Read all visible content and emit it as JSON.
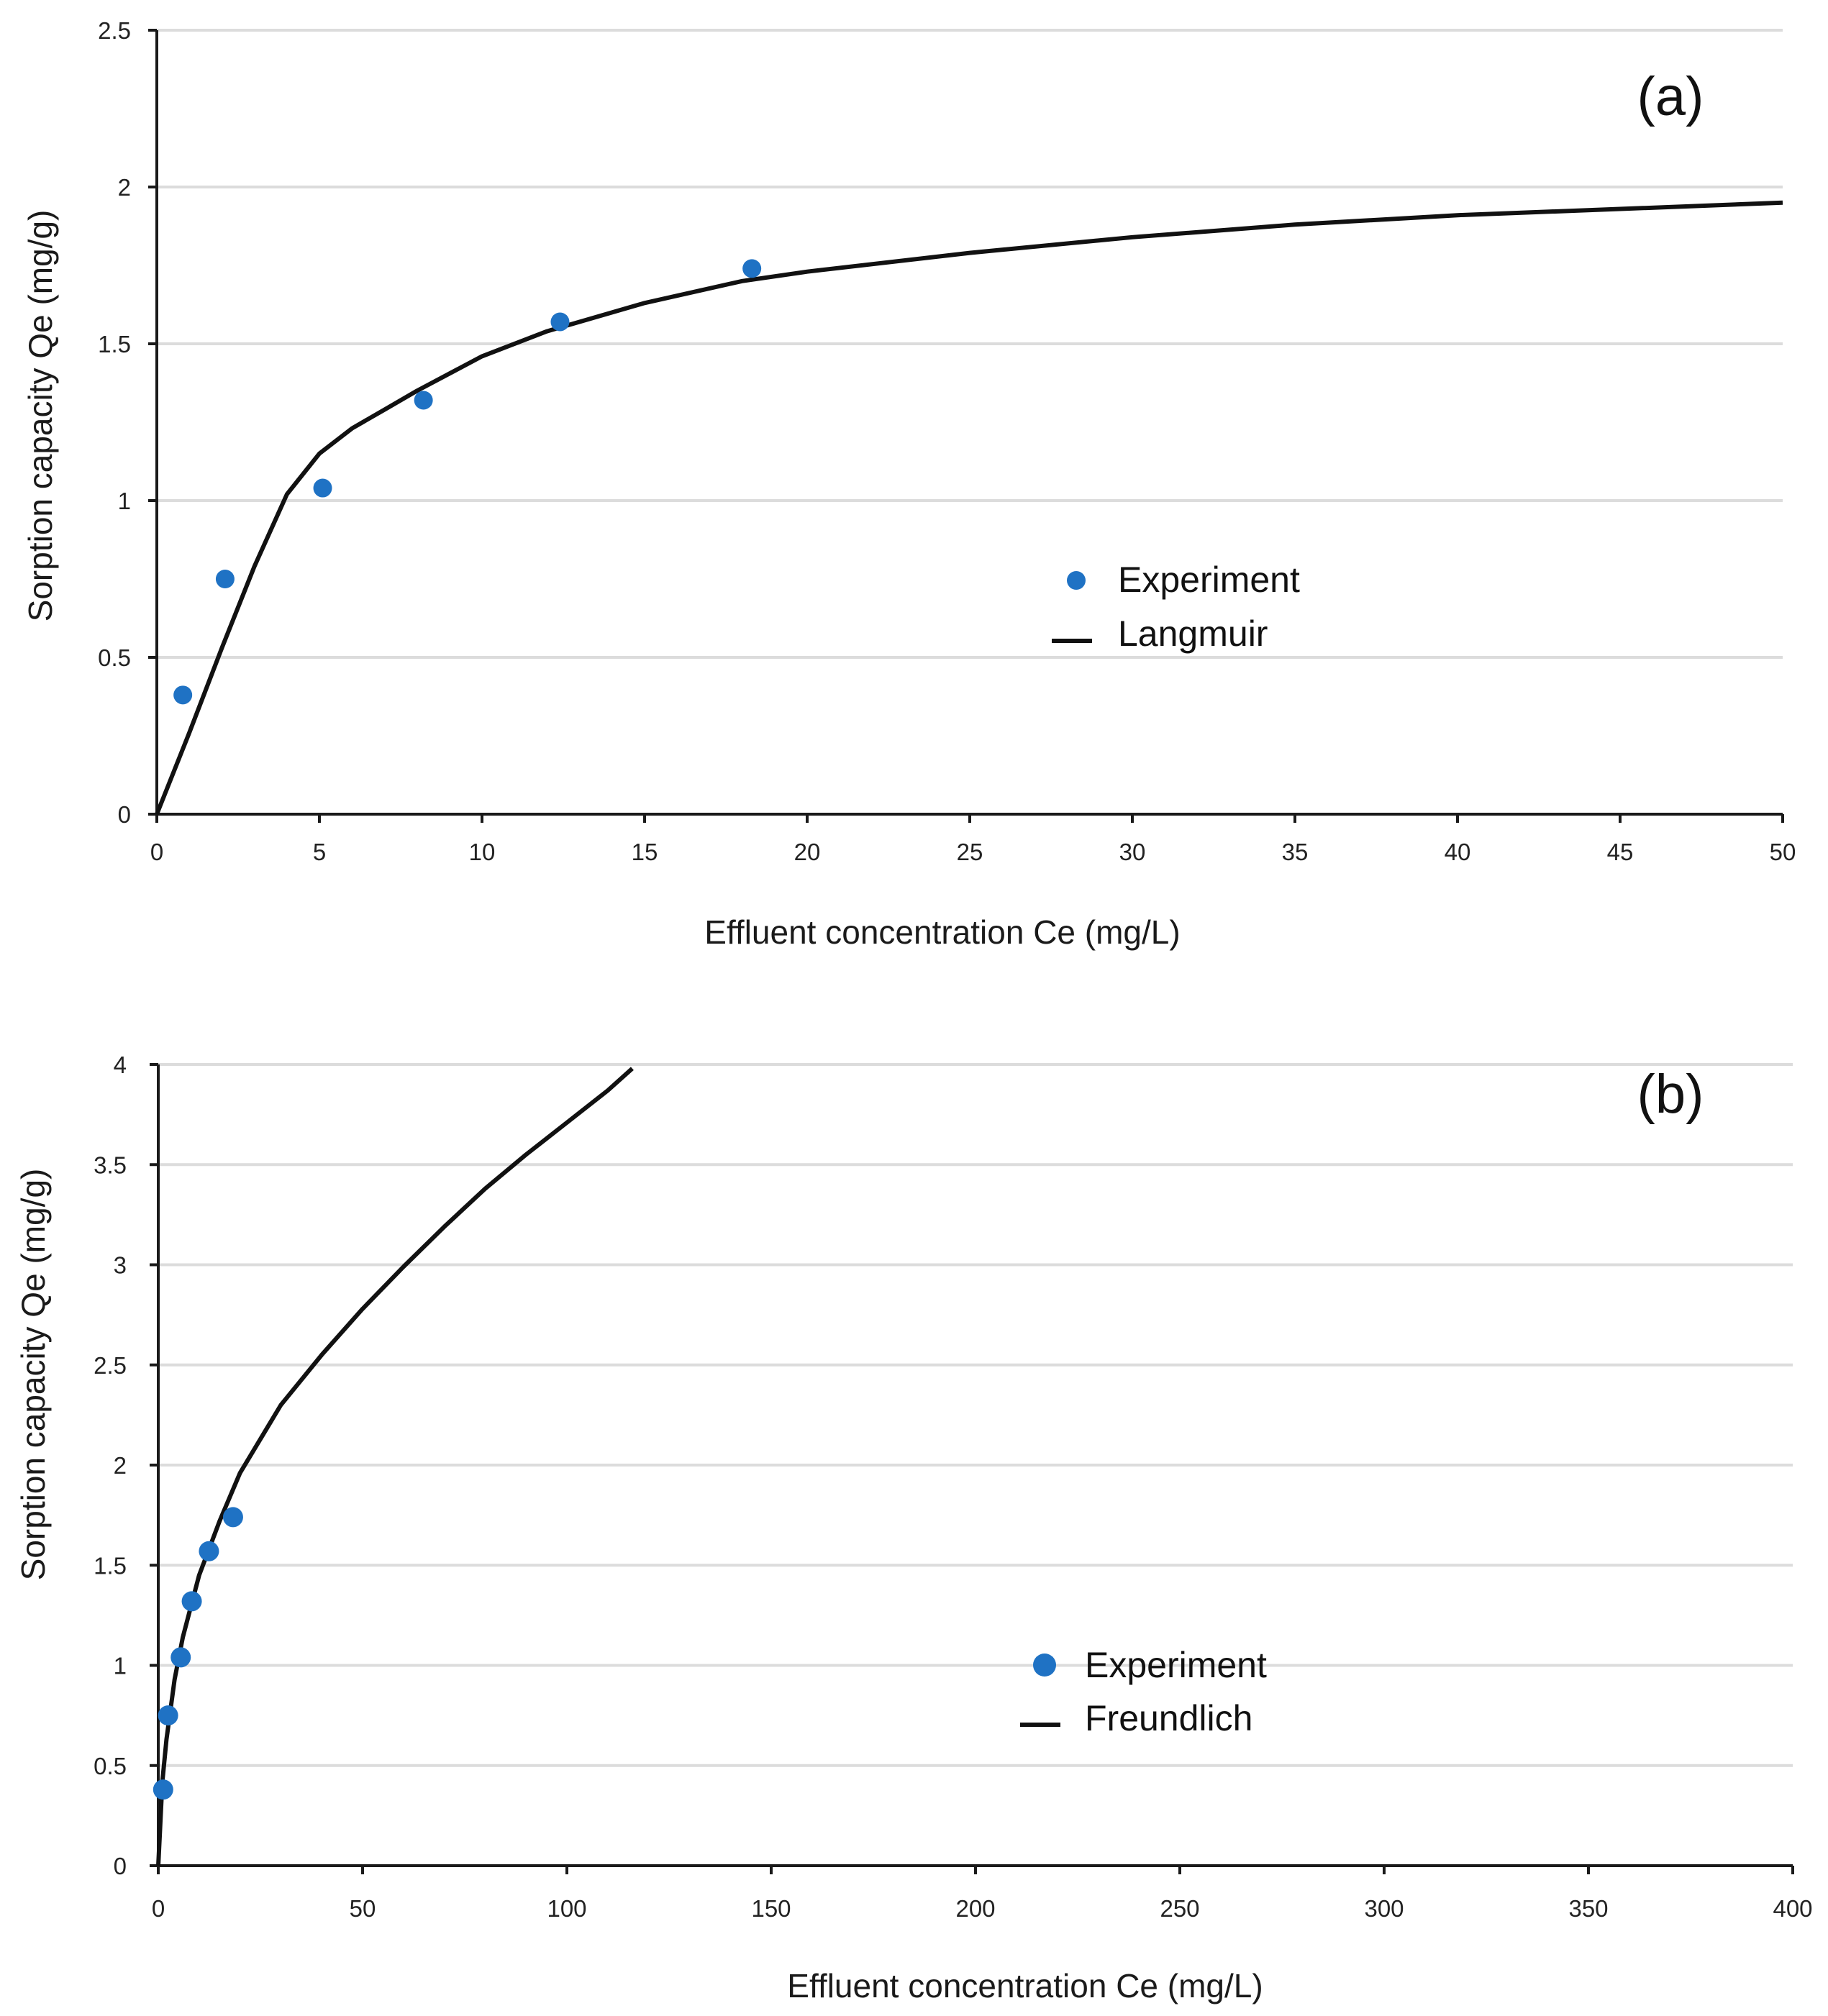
{
  "chart_data": [
    {
      "type": "scatter",
      "panel_label": "(a)",
      "xlabel": "Effluent concentration Ce (mg/L)",
      "ylabel": "Sorption capacity Qe (mg/g)",
      "xlim": [
        0,
        50
      ],
      "ylim": [
        0,
        2.5
      ],
      "x_ticks": [
        0,
        5,
        10,
        15,
        20,
        25,
        30,
        35,
        40,
        45,
        50
      ],
      "y_ticks": [
        0,
        0.5,
        1,
        1.5,
        2,
        2.5
      ],
      "x_tick_labels": [
        "0",
        "5",
        "10",
        "15",
        "20",
        "25",
        "30",
        "35",
        "40",
        "45",
        "50"
      ],
      "y_tick_labels": [
        "0",
        "0.5",
        "1",
        "1.5",
        "2",
        "2.5"
      ],
      "grid": true,
      "legend_position": "center-right",
      "series": [
        {
          "name": "Experiment",
          "kind": "points",
          "color": "#1f72c4",
          "x": [
            0.8,
            2.1,
            5.1,
            8.2,
            12.4,
            18.3
          ],
          "y": [
            0.38,
            0.75,
            1.04,
            1.32,
            1.57,
            1.74
          ]
        },
        {
          "name": "Langmuir",
          "kind": "line",
          "color": "#111111",
          "x": [
            0,
            1,
            2,
            3,
            4,
            5,
            6,
            7,
            8,
            10,
            12,
            15,
            18,
            20,
            25,
            30,
            35,
            40,
            45,
            50
          ],
          "y": [
            0,
            0.26,
            0.53,
            0.79,
            1.02,
            1.15,
            1.23,
            1.29,
            1.35,
            1.46,
            1.54,
            1.63,
            1.7,
            1.73,
            1.79,
            1.84,
            1.88,
            1.91,
            1.93,
            1.95
          ]
        }
      ]
    },
    {
      "type": "scatter",
      "panel_label": "(b)",
      "xlabel": "Effluent concentration Ce (mg/L)",
      "ylabel": "Sorption capacity Qe (mg/g)",
      "xlim": [
        0,
        400
      ],
      "ylim": [
        0,
        4
      ],
      "x_ticks": [
        0,
        50,
        100,
        150,
        200,
        250,
        300,
        350,
        400
      ],
      "y_ticks": [
        0,
        0.5,
        1,
        1.5,
        2,
        2.5,
        3,
        3.5,
        4
      ],
      "x_tick_labels": [
        "0",
        "50",
        "100",
        "150",
        "200",
        "250",
        "300",
        "350",
        "400"
      ],
      "y_tick_labels": [
        "0",
        "0.5",
        "1",
        "1.5",
        "2",
        "2.5",
        "3",
        "3.5",
        "4"
      ],
      "grid": true,
      "legend_position": "center-right",
      "series": [
        {
          "name": "Experiment",
          "kind": "points",
          "color": "#1f72c4",
          "x": [
            1.2,
            2.4,
            5.5,
            8.2,
            12.4,
            18.3
          ],
          "y": [
            0.38,
            0.75,
            1.04,
            1.32,
            1.57,
            1.74
          ]
        },
        {
          "name": "Freundlich",
          "kind": "line",
          "color": "#111111",
          "x": [
            0,
            1,
            2,
            4,
            6,
            10,
            15,
            20,
            30,
            40,
            50,
            60,
            70,
            80,
            90,
            100,
            110,
            116
          ],
          "y": [
            0,
            0.42,
            0.63,
            0.93,
            1.14,
            1.45,
            1.72,
            1.96,
            2.3,
            2.55,
            2.78,
            2.99,
            3.19,
            3.38,
            3.55,
            3.71,
            3.87,
            3.98
          ]
        }
      ]
    }
  ]
}
